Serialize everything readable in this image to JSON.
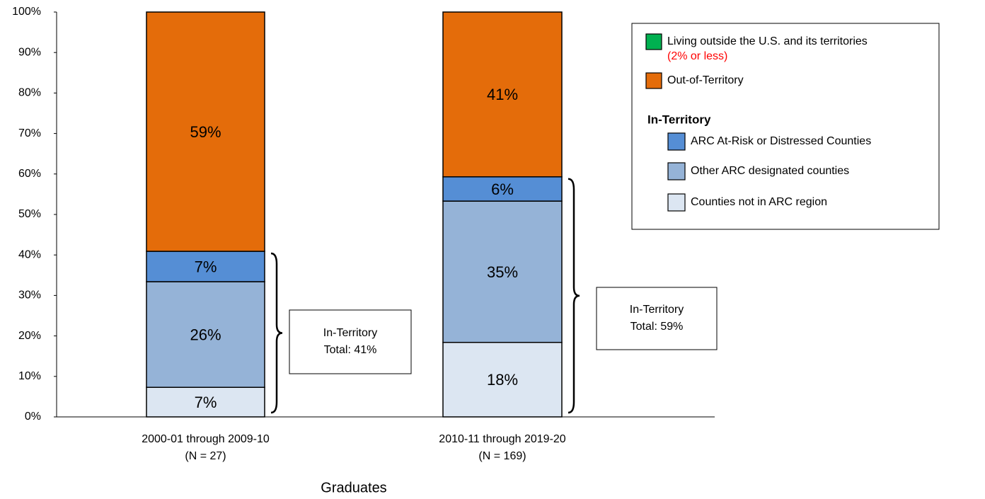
{
  "chart_data": {
    "type": "stacked_bar",
    "categories": [
      [
        "2000-01 through 2009-10",
        "(N = 27)"
      ],
      [
        "2010-11 through 2019-20",
        "(N = 169)"
      ]
    ],
    "x_axis_label": "Graduates",
    "ylim": [
      0,
      100
    ],
    "yticks": [
      {
        "value": 0,
        "label": "0%"
      },
      {
        "value": 10,
        "label": "10%"
      },
      {
        "value": 20,
        "label": "20%"
      },
      {
        "value": 30,
        "label": "30%"
      },
      {
        "value": 40,
        "label": "40%"
      },
      {
        "value": 50,
        "label": "50%"
      },
      {
        "value": 60,
        "label": "60%"
      },
      {
        "value": 70,
        "label": "70%"
      },
      {
        "value": 80,
        "label": "80%"
      },
      {
        "value": 90,
        "label": "90%"
      },
      {
        "value": 100,
        "label": "100%"
      }
    ],
    "legend_group_title": "In-Territory",
    "series": [
      {
        "name": "Living outside the U.S. and its territories",
        "note": "(2% or less)",
        "color": "#00b050",
        "values": [
          null,
          null
        ]
      },
      {
        "name": "Out-of-Territory",
        "color": "#e46c0a",
        "values": [
          59.1,
          40.7
        ],
        "value_labels": [
          "59%",
          "41%"
        ]
      },
      {
        "name": "ARC At-Risk or Distressed Counties",
        "color": "#558ed5",
        "values": [
          7.5,
          6.0
        ],
        "value_labels": [
          "7%",
          "6%"
        ]
      },
      {
        "name": "Other ARC designated counties",
        "color": "#95b3d7",
        "values": [
          26.1,
          34.9
        ],
        "value_labels": [
          "26%",
          "35%"
        ]
      },
      {
        "name": "Counties not in ARC region",
        "color": "#dce6f2",
        "values": [
          7.3,
          18.4
        ],
        "value_labels": [
          "7%",
          "18%"
        ]
      }
    ],
    "annotations": [
      {
        "lines": [
          "In-Territory",
          "Total: 41%"
        ]
      },
      {
        "lines": [
          "In-Territory",
          "Total: 59%"
        ]
      }
    ]
  }
}
